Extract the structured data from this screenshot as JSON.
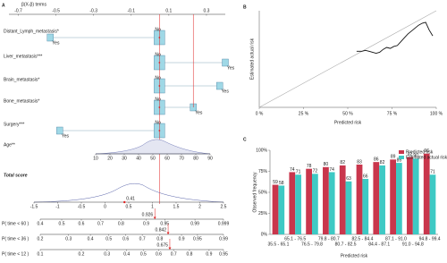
{
  "chart_data": [
    {
      "type": "nomogram",
      "panel_label": "A",
      "axis_title": "β(X-β) terms",
      "xlim": [
        -0.75,
        0.4
      ],
      "xticks": [
        -0.7,
        -0.5,
        -0.3,
        -0.1,
        0.1,
        0.3
      ],
      "variables": [
        {
          "name": "Distant_Lymph_metastasis*",
          "levels": [
            "No",
            "Yes"
          ],
          "values": [
            0.05,
            -0.53
          ]
        },
        {
          "name": "Liver_metastasis***",
          "levels": [
            "No",
            "Yes"
          ],
          "values": [
            0.05,
            0.4
          ]
        },
        {
          "name": "Brain_metastasis*",
          "levels": [
            "No",
            "Yes"
          ],
          "values": [
            0.05,
            0.37
          ]
        },
        {
          "name": "Bone_metastasis*",
          "levels": [
            "No",
            "Yes"
          ],
          "values": [
            0.05,
            0.23
          ]
        },
        {
          "name": "Surgery***",
          "levels": [
            "No",
            "Yes"
          ],
          "values": [
            0.05,
            -0.48
          ]
        }
      ],
      "age": {
        "name": "Age**",
        "xlim": [
          10,
          90
        ],
        "xticks": [
          10,
          20,
          30,
          40,
          50,
          60,
          70,
          80,
          90
        ]
      },
      "total": {
        "name": "Total score",
        "xlim": [
          -1.5,
          2.5
        ],
        "xticks": [
          -1.5,
          -1,
          -0.5,
          0,
          0.5,
          1,
          1.5,
          2,
          2.5
        ],
        "value": 0.41
      },
      "probabilities": [
        {
          "name": "P( time < 60 )",
          "scale": "cloglog",
          "xlim": [
            0.4,
            0.999
          ],
          "xticks": [
            0.4,
            0.5,
            0.6,
            0.7,
            0.8,
            0.9,
            0.95,
            0.99,
            0.999
          ],
          "value": 0.926
        },
        {
          "name": "P( time < 36 )",
          "scale": "cloglog",
          "xlim": [
            0.2,
            0.99
          ],
          "xticks": [
            0.2,
            0.3,
            0.4,
            0.5,
            0.6,
            0.7,
            0.8,
            0.9,
            0.95,
            0.99
          ],
          "value": 0.842
        },
        {
          "name": "P( time < 12 )",
          "scale": "cloglog",
          "xlim": [
            0.1,
            0.95
          ],
          "xticks": [
            0.1,
            0.2,
            0.3,
            0.4,
            0.5,
            0.6,
            0.7,
            0.8,
            0.9,
            0.95
          ],
          "value": 0.675
        }
      ],
      "marker_color": "#e02020"
    },
    {
      "type": "line",
      "panel_label": "B",
      "xlabel": "Predicted risk",
      "ylabel": "Estimated actual risk",
      "x": [
        55,
        58,
        60,
        62,
        64,
        66,
        68,
        70,
        72,
        74,
        76,
        78,
        80,
        82,
        84,
        86,
        88,
        90,
        92,
        94,
        96,
        98
      ],
      "values": [
        58,
        58,
        59,
        58,
        57,
        56,
        57,
        60,
        62,
        61,
        63,
        64,
        68,
        72,
        76,
        79,
        82,
        85,
        87,
        88,
        80,
        74
      ],
      "color": "#111111",
      "diagonal": true,
      "xlim": [
        0,
        100
      ],
      "ylim": [
        0,
        100
      ],
      "xticks": [
        {
          "value": 0,
          "label": "0 %"
        },
        {
          "value": 25,
          "label": "25 %"
        },
        {
          "value": 50,
          "label": "50 %"
        },
        {
          "value": 75,
          "label": "75 %"
        },
        {
          "value": 100,
          "label": "100 %"
        }
      ]
    },
    {
      "type": "bar",
      "panel_label": "C",
      "xlabel": "Predicted risk",
      "ylabel": "Observed frequency",
      "categories": [
        "35.5 - 65.1",
        "65.1 - 76.5",
        "76.5 - 79.8",
        "79.8 - 80.7",
        "80.7 - 82.5",
        "82.5 - 84.4",
        "84.4 - 87.1",
        "87.1 - 91.0",
        "91.0 - 94.8",
        "94.8 - 99.4"
      ],
      "series": [
        {
          "name": "Predicted risk",
          "color": "#c9364c",
          "values": [
            59,
            74,
            78,
            80,
            82,
            83,
            86,
            89,
            92,
            96
          ]
        },
        {
          "name": "Estimated actual risk",
          "color": "#3ec9c4",
          "values": [
            58,
            71,
            72,
            74,
            63,
            66,
            82,
            85,
            90,
            71
          ]
        }
      ],
      "ylim": [
        0,
        100
      ],
      "yticks": [
        {
          "value": 0,
          "label": "0%"
        },
        {
          "value": 25,
          "label": "25%"
        },
        {
          "value": 50,
          "label": "50%"
        },
        {
          "value": 75,
          "label": "75%"
        },
        {
          "value": 100,
          "label": "100%"
        }
      ],
      "legend": "top-right"
    }
  ]
}
